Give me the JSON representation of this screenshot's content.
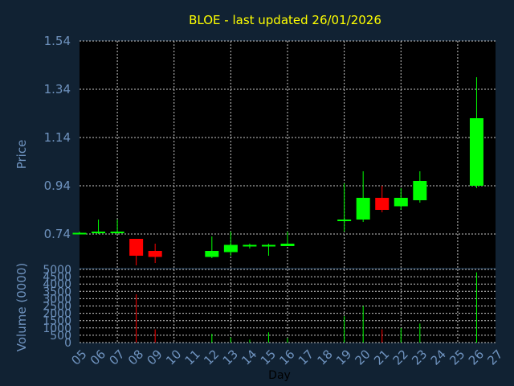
{
  "chart_data": {
    "type": "candlestick",
    "title": "BLOE - last updated 26/01/2026",
    "price_label": "Price",
    "volume_label": "Volume (0000)",
    "xlabel": "Day",
    "x_ticks": [
      "05",
      "06",
      "07",
      "08",
      "09",
      "10",
      "11",
      "12",
      "13",
      "14",
      "15",
      "16",
      "17",
      "18",
      "19",
      "20",
      "21",
      "22",
      "23",
      "24",
      "25",
      "26",
      "27"
    ],
    "price_ticks": [
      "1.54",
      "1.34",
      "1.14",
      "0.94",
      "0.74"
    ],
    "price_tick_values": [
      1.54,
      1.34,
      1.14,
      0.94,
      0.74
    ],
    "price_range": [
      0.6,
      1.54
    ],
    "volume_ticks": [
      "5000",
      "4500",
      "4000",
      "3500",
      "3000",
      "2500",
      "2000",
      "1500",
      "1000",
      "500",
      "0"
    ],
    "volume_range": [
      0,
      5000
    ],
    "colors": {
      "up": "#00ff00",
      "down": "#ff0000",
      "title": "#ffff00",
      "text": "#6f93bf",
      "background": "#112233",
      "plot": "#000000"
    },
    "candles": [
      {
        "day": 5,
        "open": 0.745,
        "high": 0.75,
        "low": 0.74,
        "close": 0.745,
        "volume": 0
      },
      {
        "day": 6,
        "open": 0.745,
        "high": 0.8,
        "low": 0.74,
        "close": 0.75,
        "volume": 0
      },
      {
        "day": 7,
        "open": 0.745,
        "high": 0.8,
        "low": 0.74,
        "close": 0.75,
        "volume": 0
      },
      {
        "day": 8,
        "open": 0.72,
        "high": 0.72,
        "low": 0.61,
        "close": 0.65,
        "volume": 3300
      },
      {
        "day": 9,
        "open": 0.67,
        "high": 0.7,
        "low": 0.62,
        "close": 0.645,
        "volume": 900
      },
      {
        "day": 12,
        "open": 0.645,
        "high": 0.73,
        "low": 0.64,
        "close": 0.67,
        "volume": 600
      },
      {
        "day": 13,
        "open": 0.665,
        "high": 0.75,
        "low": 0.65,
        "close": 0.695,
        "volume": 350
      },
      {
        "day": 14,
        "open": 0.69,
        "high": 0.7,
        "low": 0.68,
        "close": 0.695,
        "volume": 200
      },
      {
        "day": 15,
        "open": 0.69,
        "high": 0.7,
        "low": 0.65,
        "close": 0.695,
        "volume": 700
      },
      {
        "day": 16,
        "open": 0.69,
        "high": 0.75,
        "low": 0.69,
        "close": 0.7,
        "volume": 300
      },
      {
        "day": 19,
        "open": 0.795,
        "high": 0.95,
        "low": 0.75,
        "close": 0.8,
        "volume": 1800
      },
      {
        "day": 20,
        "open": 0.8,
        "high": 1.0,
        "low": 0.79,
        "close": 0.89,
        "volume": 2500
      },
      {
        "day": 21,
        "open": 0.89,
        "high": 0.94,
        "low": 0.83,
        "close": 0.84,
        "volume": 900
      },
      {
        "day": 22,
        "open": 0.855,
        "high": 0.93,
        "low": 0.84,
        "close": 0.89,
        "volume": 1000
      },
      {
        "day": 23,
        "open": 0.88,
        "high": 1.0,
        "low": 0.87,
        "close": 0.96,
        "volume": 1300
      },
      {
        "day": 26,
        "open": 0.94,
        "high": 1.39,
        "low": 0.93,
        "close": 1.22,
        "volume": 4800
      }
    ]
  }
}
